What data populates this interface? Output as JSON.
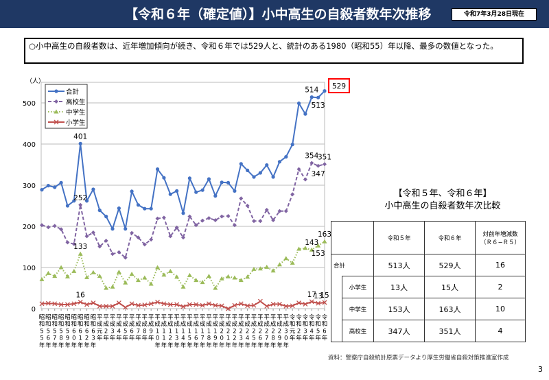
{
  "header": {
    "title": "【令和６年（確定値）】小中高生の自殺者数年次推移",
    "date": "令和7年3月28日現在"
  },
  "summary": "○小中高生の自殺者数は、近年増加傾向が続き、令和６年では529人と、統計のある1980（昭和55）年以降、最多の数値となった。",
  "chart_data": {
    "type": "line",
    "ylabel": "（人）",
    "ylim": [
      0,
      550
    ],
    "yticks": [
      0,
      100,
      200,
      300,
      400,
      500
    ],
    "grid": true,
    "legend_position": "top-left",
    "x": [
      "昭和55年",
      "昭和56年",
      "昭和57年",
      "昭和58年",
      "昭和59年",
      "昭和60年",
      "昭和61年",
      "昭和62年",
      "昭和63年",
      "平成元年",
      "平成2年",
      "平成3年",
      "平成4年",
      "平成5年",
      "平成6年",
      "平成7年",
      "平成8年",
      "平成9年",
      "平成10年",
      "平成11年",
      "平成12年",
      "平成13年",
      "平成14年",
      "平成15年",
      "平成16年",
      "平成17年",
      "平成18年",
      "平成19年",
      "平成20年",
      "平成21年",
      "平成22年",
      "平成23年",
      "平成24年",
      "平成25年",
      "平成26年",
      "平成27年",
      "平成28年",
      "平成29年",
      "平成30年",
      "令和元年",
      "令和2年",
      "令和3年",
      "令和4年",
      "令和5年",
      "令和6年"
    ],
    "series": [
      {
        "name": "合計",
        "color": "#4472c4",
        "marker": "circle",
        "values": [
          289,
          299,
          295,
          306,
          250,
          262,
          401,
          262,
          290,
          239,
          224,
          194,
          244,
          194,
          285,
          252,
          243,
          243,
          339,
          318,
          278,
          286,
          232,
          317,
          283,
          288,
          315,
          274,
          307,
          306,
          286,
          352,
          336,
          320,
          330,
          349,
          320,
          357,
          369,
          399,
          499,
          473,
          514,
          513,
          529
        ]
      },
      {
        "name": "高校生",
        "color": "#8064a2",
        "marker": "diamond",
        "values": [
          203,
          198,
          201,
          193,
          161,
          157,
          252,
          176,
          185,
          151,
          165,
          133,
          137,
          124,
          184,
          173,
          156,
          168,
          219,
          221,
          176,
          197,
          173,
          224,
          203,
          214,
          220,
          215,
          224,
          225,
          203,
          268,
          250,
          213,
          213,
          240,
          215,
          237,
          237,
          278,
          339,
          314,
          354,
          347,
          351
        ]
      },
      {
        "name": "中学生",
        "color": "#9bbb59",
        "marker": "triangle",
        "values": [
          71,
          86,
          79,
          100,
          78,
          91,
          133,
          76,
          88,
          79,
          50,
          53,
          89,
          63,
          84,
          69,
          75,
          60,
          100,
          82,
          91,
          77,
          53,
          81,
          69,
          64,
          79,
          50,
          73,
          78,
          75,
          69,
          77,
          96,
          97,
          101,
          92,
          107,
          122,
          111,
          145,
          147,
          143,
          153,
          163
        ]
      },
      {
        "name": "小学生",
        "color": "#c0504d",
        "marker": "x",
        "values": [
          12,
          13,
          12,
          10,
          10,
          12,
          16,
          10,
          14,
          6,
          6,
          6,
          14,
          3,
          12,
          8,
          9,
          12,
          16,
          12,
          10,
          10,
          5,
          10,
          10,
          8,
          12,
          8,
          7,
          0,
          8,
          12,
          7,
          8,
          18,
          6,
          11,
          11,
          6,
          7,
          14,
          11,
          17,
          13,
          15
        ]
      }
    ],
    "annotations": [
      {
        "series": 0,
        "index": 6,
        "text": "401",
        "pos": "above"
      },
      {
        "series": 1,
        "index": 6,
        "text": "252",
        "pos": "above"
      },
      {
        "series": 2,
        "index": 6,
        "text": "133",
        "pos": "above"
      },
      {
        "series": 3,
        "index": 6,
        "text": "16",
        "pos": "above"
      },
      {
        "series": 0,
        "index": 42,
        "text": "514",
        "pos": "above"
      },
      {
        "series": 0,
        "index": 43,
        "text": "513",
        "pos": "below"
      },
      {
        "series": 0,
        "index": 44,
        "text": "529",
        "pos": "boxed"
      },
      {
        "series": 1,
        "index": 42,
        "text": "354",
        "pos": "above"
      },
      {
        "series": 1,
        "index": 43,
        "text": "347",
        "pos": "below"
      },
      {
        "series": 1,
        "index": 44,
        "text": "351",
        "pos": "above"
      },
      {
        "series": 2,
        "index": 42,
        "text": "143",
        "pos": "above"
      },
      {
        "series": 2,
        "index": 43,
        "text": "153",
        "pos": "below"
      },
      {
        "series": 2,
        "index": 44,
        "text": "163",
        "pos": "above"
      },
      {
        "series": 3,
        "index": 42,
        "text": "17",
        "pos": "above"
      },
      {
        "series": 3,
        "index": 43,
        "text": "13",
        "pos": "above"
      },
      {
        "series": 3,
        "index": 44,
        "text": "15",
        "pos": "above"
      }
    ],
    "highlight_color": "#ff0000"
  },
  "comparison": {
    "title1": "【令和５年、令和６年】",
    "title2": "小中高生の自殺者数年次比較",
    "headers": [
      "令和５年",
      "令和６年",
      "対前年増減数\n（Ｒ６−Ｒ５）"
    ],
    "rows": [
      {
        "label": "合計",
        "r5": "513人",
        "r6": "529人",
        "diff": "16"
      },
      {
        "label": "小学生",
        "r5": "13人",
        "r6": "15人",
        "diff": "2"
      },
      {
        "label": "中学生",
        "r5": "153人",
        "r6": "163人",
        "diff": "10"
      },
      {
        "label": "高校生",
        "r5": "347人",
        "r6": "351人",
        "diff": "4"
      }
    ]
  },
  "source": "資料：警察庁自殺統計原票データより厚生労働省自殺対策推進室作成",
  "page_number": "3"
}
